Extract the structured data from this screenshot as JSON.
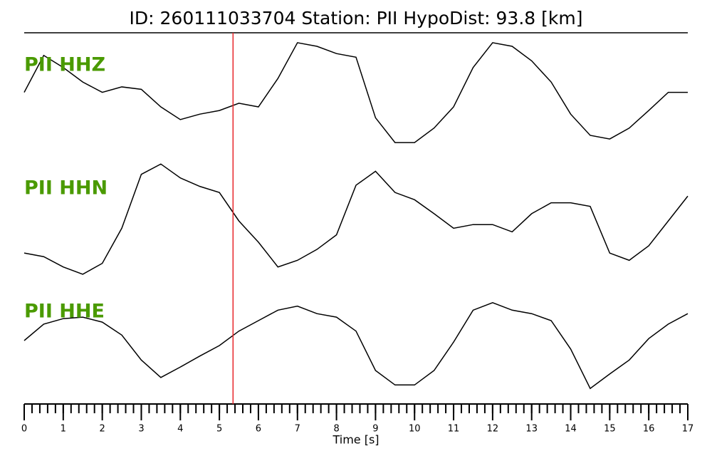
{
  "chart_data": {
    "type": "line",
    "title": "ID: 260111033704   Station: PII   HypoDist:    93.8 [km]",
    "xlabel": "Time [s]",
    "x": [
      0,
      0.5,
      1,
      1.5,
      2,
      2.5,
      3,
      3.5,
      4,
      4.5,
      5,
      5.5,
      6,
      6.5,
      7,
      7.5,
      8,
      8.5,
      9,
      9.5,
      10,
      10.5,
      11,
      11.5,
      12,
      12.5,
      13,
      13.5,
      14,
      14.5,
      15,
      15.5,
      16,
      16.5,
      17
    ],
    "xlim": [
      0,
      17
    ],
    "xticks": [
      0,
      1,
      2,
      3,
      4,
      5,
      6,
      7,
      8,
      9,
      10,
      11,
      12,
      13,
      14,
      15,
      16,
      17
    ],
    "xminor_step": 0.2,
    "ylim": [
      -1,
      1
    ],
    "label_color": "#4a9a00",
    "marker_x": 5.35,
    "marker_color": "#e8262a",
    "series": [
      {
        "name": "PII HHZ",
        "color": "#000000",
        "values": [
          0.04,
          0.65,
          0.45,
          0.21,
          0.04,
          0.13,
          0.09,
          -0.2,
          -0.41,
          -0.32,
          -0.26,
          -0.14,
          -0.2,
          0.27,
          0.86,
          0.8,
          0.68,
          0.62,
          -0.38,
          -0.79,
          -0.79,
          -0.55,
          -0.2,
          0.45,
          0.86,
          0.8,
          0.56,
          0.21,
          -0.32,
          -0.67,
          -0.73,
          -0.55,
          -0.26,
          0.04,
          0.04
        ]
      },
      {
        "name": "PII HHN",
        "color": "#000000",
        "values": [
          -0.59,
          -0.65,
          -0.82,
          -0.94,
          -0.76,
          -0.18,
          0.71,
          0.88,
          0.65,
          0.51,
          0.41,
          -0.06,
          -0.41,
          -0.82,
          -0.71,
          -0.53,
          -0.29,
          0.53,
          0.76,
          0.41,
          0.29,
          0.06,
          -0.18,
          -0.12,
          -0.12,
          -0.24,
          0.06,
          0.24,
          0.24,
          0.18,
          -0.59,
          -0.71,
          -0.47,
          -0.06,
          0.35
        ]
      },
      {
        "name": "PII HHE",
        "color": "#000000",
        "values": [
          0.1,
          0.43,
          0.54,
          0.57,
          0.47,
          0.21,
          -0.29,
          -0.64,
          -0.43,
          -0.21,
          0,
          0.29,
          0.5,
          0.71,
          0.79,
          0.64,
          0.57,
          0.29,
          -0.5,
          -0.79,
          -0.79,
          -0.5,
          0.07,
          0.71,
          0.86,
          0.71,
          0.64,
          0.5,
          -0.07,
          -0.86,
          -0.57,
          -0.29,
          0.14,
          0.43,
          0.64
        ]
      }
    ]
  }
}
